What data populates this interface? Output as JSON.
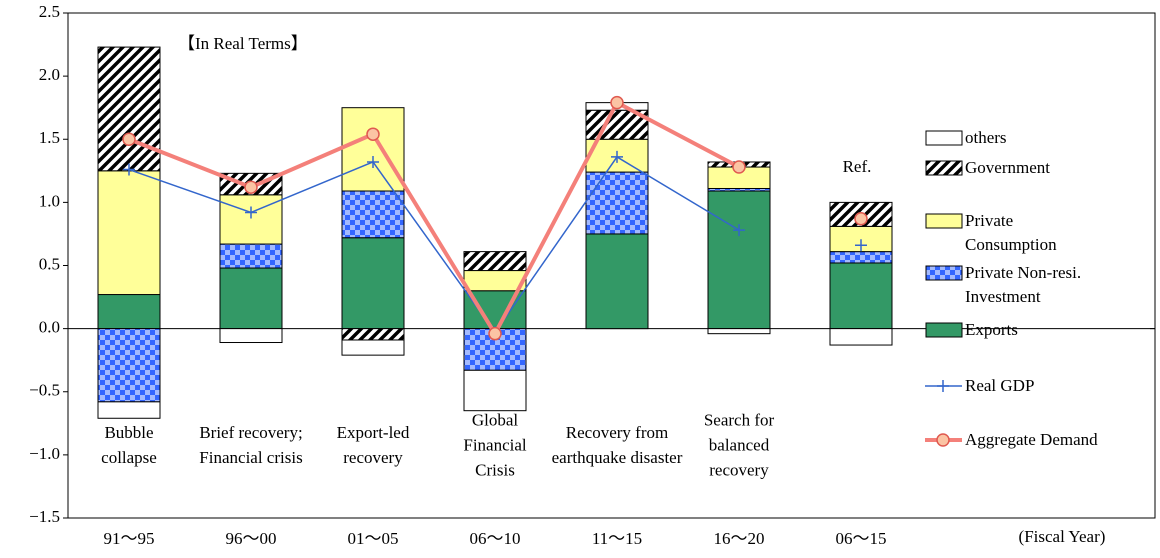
{
  "chart_data": {
    "type": "stacked_bar_line",
    "subtitle": "【In Real Terms】",
    "annotation": "Ref.",
    "x_label": "(Fiscal Year)",
    "categories": [
      "91～95",
      "96～00",
      "01～05",
      "06～10",
      "11～15",
      "16～20",
      "06～15"
    ],
    "period_labels": [
      "Bubble\ncollapse",
      "Brief recovery;\nFinancial crisis",
      "Export-led\nrecovery",
      "Global\nFinancial\nCrisis",
      "Recovery from\nearthquake disaster",
      "Search for\nbalanced\nrecovery",
      null
    ],
    "series": [
      {
        "name": "Exports",
        "color": "#339966",
        "fill": "solid",
        "values": [
          0.27,
          0.48,
          0.72,
          0.3,
          0.75,
          1.09,
          0.52
        ]
      },
      {
        "name": "Private Non-resi.\nInvestment",
        "color": "#3366ff",
        "fill": "check",
        "values": [
          -0.58,
          0.19,
          0.37,
          -0.33,
          0.49,
          0.02,
          0.09
        ]
      },
      {
        "name": "Private\nConsumption",
        "color": "#ffff99",
        "fill": "solid",
        "values": [
          0.98,
          0.39,
          0.66,
          0.16,
          0.26,
          0.17,
          0.2
        ]
      },
      {
        "name": "Government",
        "color": "#000000",
        "fill": "diagonal",
        "values": [
          0.98,
          0.17,
          -0.09,
          0.15,
          0.23,
          0.04,
          0.19
        ]
      },
      {
        "name": "others",
        "color": "#ffffff",
        "fill": "solid",
        "values": [
          -0.13,
          -0.11,
          -0.12,
          -0.32,
          0.06,
          -0.04,
          -0.13
        ]
      },
      {
        "name": "Real GDP",
        "type": "line",
        "color": "#3366cc",
        "marker": "plus",
        "values": [
          1.26,
          0.92,
          1.32,
          -0.03,
          1.36,
          0.78,
          0.66
        ]
      },
      {
        "name": "Aggregate Demand",
        "type": "line",
        "color": "#f4807a",
        "marker": "circle",
        "values": [
          1.5,
          1.12,
          1.54,
          -0.04,
          1.79,
          1.28,
          0.87
        ]
      }
    ],
    "ylim": [
      -1.5,
      2.5
    ],
    "yticks": [
      {
        "value": -1.5,
        "label": "−1.5"
      },
      {
        "value": -1.0,
        "label": "−1.0"
      },
      {
        "value": -0.5,
        "label": "−0.5"
      },
      {
        "value": 0,
        "label": "0.0"
      },
      {
        "value": 0.5,
        "label": "0.5"
      },
      {
        "value": 1.0,
        "label": "1.0"
      },
      {
        "value": 1.5,
        "label": "1.5"
      },
      {
        "value": 2.0,
        "label": "2.0"
      },
      2.5
    ]
  }
}
